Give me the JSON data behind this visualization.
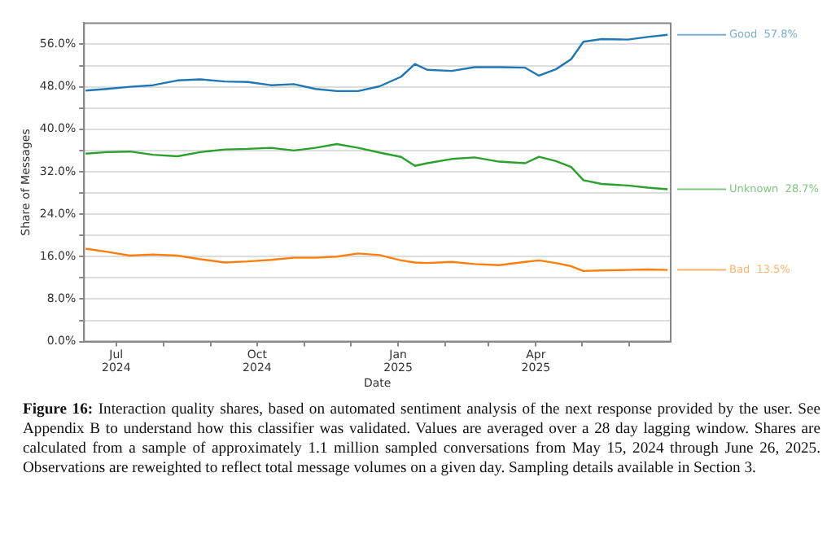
{
  "chart_data": {
    "type": "line",
    "xlabel": "Date",
    "ylabel": "Share of Messages",
    "x": [
      "2024-06-11",
      "2024-06-25",
      "2024-07-10",
      "2024-07-25",
      "2024-08-10",
      "2024-08-25",
      "2024-09-10",
      "2024-09-25",
      "2024-10-10",
      "2024-10-25",
      "2024-11-08",
      "2024-11-22",
      "2024-12-06",
      "2024-12-20",
      "2025-01-03",
      "2025-01-12",
      "2025-01-20",
      "2025-02-05",
      "2025-02-20",
      "2025-03-08",
      "2025-03-25",
      "2025-04-03",
      "2025-04-14",
      "2025-04-24",
      "2025-05-02",
      "2025-05-14",
      "2025-05-31",
      "2025-06-13",
      "2025-06-26"
    ],
    "series": [
      {
        "name": "Good",
        "color": "#1f77b4",
        "values": [
          47.3,
          47.6,
          48.0,
          48.3,
          49.2,
          49.4,
          49.0,
          48.9,
          48.3,
          48.5,
          47.6,
          47.2,
          47.2,
          48.1,
          49.9,
          52.3,
          51.2,
          51.0,
          51.7,
          51.7,
          51.6,
          50.1,
          51.3,
          53.2,
          56.5,
          57.0,
          56.9,
          57.4,
          57.8
        ],
        "value_labels": [
          null,
          null,
          null,
          null,
          null,
          null,
          null,
          null,
          null,
          null,
          null,
          null,
          null,
          null,
          null,
          null,
          null,
          null,
          null,
          null,
          null,
          null,
          null,
          null,
          null,
          null,
          null,
          null,
          "57.8%"
        ]
      },
      {
        "name": "Unknown",
        "color": "#2ca02c",
        "values": [
          35.4,
          35.7,
          35.8,
          35.2,
          34.9,
          35.7,
          36.2,
          36.3,
          36.5,
          36.0,
          36.5,
          37.2,
          36.5,
          35.6,
          34.8,
          33.1,
          33.6,
          34.4,
          34.7,
          33.9,
          33.6,
          34.8,
          34.0,
          32.9,
          30.4,
          29.7,
          29.4,
          29.0,
          28.7
        ],
        "value_labels": [
          null,
          null,
          null,
          null,
          null,
          null,
          null,
          null,
          null,
          null,
          null,
          null,
          null,
          null,
          null,
          null,
          null,
          null,
          null,
          null,
          null,
          null,
          null,
          null,
          null,
          null,
          null,
          null,
          "28.7%"
        ]
      },
      {
        "name": "Bad",
        "color": "#ff7f0e",
        "values": [
          17.5,
          16.9,
          16.2,
          16.4,
          16.2,
          15.5,
          14.9,
          15.1,
          15.4,
          15.8,
          15.8,
          16.0,
          16.6,
          16.3,
          15.3,
          14.9,
          14.8,
          15.0,
          14.6,
          14.4,
          15.0,
          15.3,
          14.8,
          14.2,
          13.3,
          13.4,
          13.5,
          13.6,
          13.5
        ],
        "value_labels": [
          null,
          null,
          null,
          null,
          null,
          null,
          null,
          null,
          null,
          null,
          null,
          null,
          null,
          null,
          null,
          null,
          null,
          null,
          null,
          null,
          null,
          null,
          null,
          null,
          null,
          null,
          null,
          null,
          "13.5%"
        ]
      }
    ],
    "xlim": [
      "2024-06-10",
      "2025-06-28"
    ],
    "xticks": [
      {
        "value": "2024-07-01",
        "label": "Jul 2024"
      },
      {
        "value": "2024-08-01",
        "label": null
      },
      {
        "value": "2024-09-01",
        "label": null
      },
      {
        "value": "2024-10-01",
        "label": "Oct 2024"
      },
      {
        "value": "2024-11-01",
        "label": null
      },
      {
        "value": "2024-12-01",
        "label": null
      },
      {
        "value": "2025-01-01",
        "label": "Jan 2025"
      },
      {
        "value": "2025-02-01",
        "label": null
      },
      {
        "value": "2025-03-01",
        "label": null
      },
      {
        "value": "2025-04-01",
        "label": "Apr 2025"
      },
      {
        "value": "2025-05-01",
        "label": null
      },
      {
        "value": "2025-06-01",
        "label": null
      }
    ],
    "ylim": [
      0,
      60
    ],
    "yticks": [
      {
        "value": 0,
        "label": "0.0%"
      },
      {
        "value": 4,
        "label": null
      },
      {
        "value": 8,
        "label": "8.0%"
      },
      {
        "value": 12,
        "label": null
      },
      {
        "value": 16,
        "label": "16.0%"
      },
      {
        "value": 20,
        "label": null
      },
      {
        "value": 24,
        "label": "24.0%"
      },
      {
        "value": 28,
        "label": null
      },
      {
        "value": 32,
        "label": "32.0%"
      },
      {
        "value": 36,
        "label": null
      },
      {
        "value": 40,
        "label": "40.0%"
      },
      {
        "value": 44,
        "label": null
      },
      {
        "value": 48,
        "label": "48.0%"
      },
      {
        "value": 52,
        "label": null
      },
      {
        "value": 56,
        "label": "56.0%"
      }
    ],
    "grid": "y",
    "legend": false,
    "marker": "none",
    "line_style": "solid",
    "annotations": [
      "Figure 16: Interaction quality shares, based on automated sentiment analysis of the next response provided by the user. See Appendix B to understand how this classifier was validated. Values are averaged over a 28 day lagging window. Shares are calculated from a sample of approximately 1.1 million sampled conversations from May 15, 2024 through June 26, 2025. Observations are reweighted to reflect total message volumes on a given day. Sampling details available in Section 3."
    ]
  }
}
